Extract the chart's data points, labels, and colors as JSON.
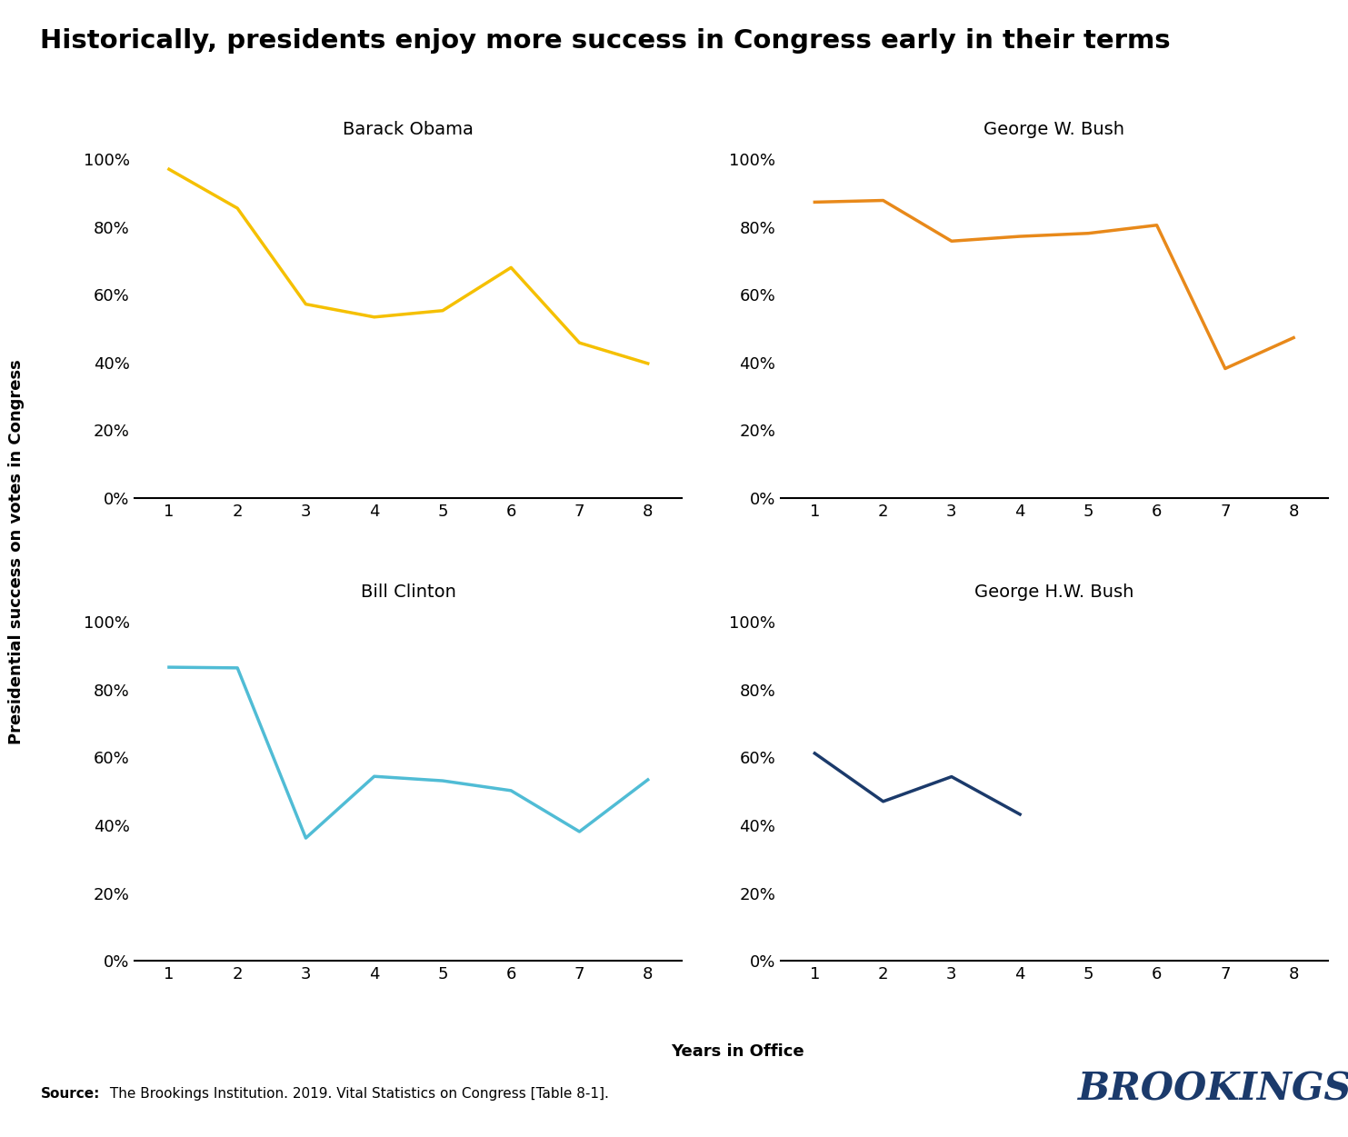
{
  "title": "Historically, presidents enjoy more success in Congress early in their terms",
  "ylabel": "Presidential success on votes in Congress",
  "xlabel": "Years in Office",
  "source_prefix": "Source:",
  "source_rest": " The Brookings Institution. 2019. Vital Statistics on Congress [Table 8-1].",
  "brookings_text": "BROOKINGS",
  "brookings_color": "#1B3A6B",
  "subplots": [
    {
      "name": "Barack Obama",
      "color": "#F5C000",
      "x": [
        1,
        2,
        3,
        4,
        5,
        6,
        7,
        8
      ],
      "y": [
        0.97,
        0.855,
        0.572,
        0.534,
        0.553,
        0.68,
        0.458,
        0.397
      ]
    },
    {
      "name": "George W. Bush",
      "color": "#E8891A",
      "x": [
        1,
        2,
        3,
        4,
        5,
        6,
        7,
        8
      ],
      "y": [
        0.873,
        0.878,
        0.758,
        0.772,
        0.781,
        0.805,
        0.382,
        0.473
      ]
    },
    {
      "name": "Bill Clinton",
      "color": "#50BCD5",
      "x": [
        1,
        2,
        3,
        4,
        5,
        6,
        7,
        8
      ],
      "y": [
        0.866,
        0.864,
        0.362,
        0.544,
        0.531,
        0.502,
        0.381,
        0.534
      ]
    },
    {
      "name": "George H.W. Bush",
      "color": "#1B3A6B",
      "x": [
        1,
        2,
        3,
        4
      ],
      "y": [
        0.612,
        0.47,
        0.543,
        0.432
      ]
    }
  ],
  "ylim": [
    0,
    1.05
  ],
  "yticks": [
    0.0,
    0.2,
    0.4,
    0.6,
    0.8,
    1.0
  ],
  "xticks": [
    1,
    2,
    3,
    4,
    5,
    6,
    7,
    8
  ],
  "line_width": 2.5,
  "title_fontsize": 21,
  "label_fontsize": 13,
  "tick_fontsize": 13,
  "subplot_title_fontsize": 14,
  "source_fontsize": 11,
  "brookings_fontsize": 30
}
